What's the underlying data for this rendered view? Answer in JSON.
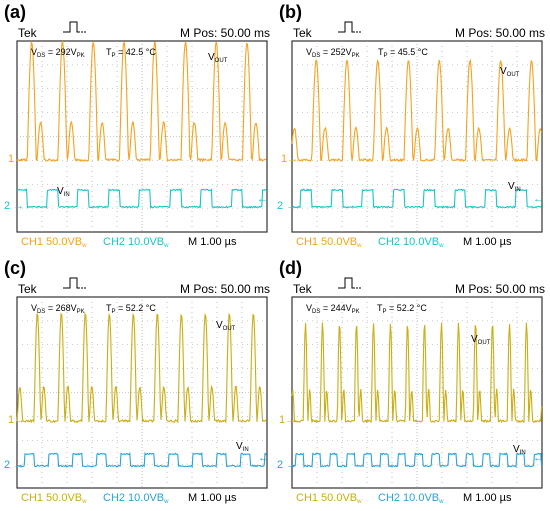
{
  "colors": {
    "ch1_ab": "#f5a21f",
    "ch1_cd": "#c9ae14",
    "ch2_ab": "#1cc4c8",
    "ch2_cd": "#2aa4d4",
    "grid": "#9a9a9a",
    "frame": "#333333"
  },
  "icons": {
    "trigger": "trigger-pulse-icon"
  },
  "panels": [
    {
      "label": "(a)",
      "tek": "Tek",
      "mpos": "M Pos: 50.00 ms",
      "vds_prefix": "V",
      "vds_sub": "DS",
      "vds_value": " = 292V",
      "vds_unit_sub": "PK",
      "tp_prefix": "T",
      "tp_sub": "P",
      "tp_value": " = 42.5 °C",
      "vout_prefix": "V",
      "vout_sub": "OUT",
      "vin_prefix": "V",
      "vin_sub": "IN",
      "ch1_marker": "1",
      "ch2_marker": "2",
      "ch1_text": "CH1 50.0VB",
      "ch1_sub": "w",
      "ch2_text": "CH2 10.0VB",
      "ch2_sub": "w",
      "timebase": "M 1.00 µs",
      "gate_period_div": 1.23,
      "gate_duty": 0.36,
      "gate_phase_div": 1.2
    },
    {
      "label": "(b)",
      "tek": "Tek",
      "mpos": "M Pos: 50.00 ms",
      "vds_prefix": "V",
      "vds_sub": "DS",
      "vds_value": " = 252V",
      "vds_unit_sub": "PK",
      "tp_prefix": "T",
      "tp_sub": "P",
      "tp_value": " = 45.5 °C",
      "vout_prefix": "V",
      "vout_sub": "OUT",
      "vin_prefix": "V",
      "vin_sub": "IN",
      "ch1_marker": "1",
      "ch2_marker": "2",
      "ch1_text": "CH1 50.0VB",
      "ch1_sub": "w",
      "ch2_text": "CH2 10.0VB",
      "ch2_sub": "w",
      "timebase": "M 1.00 µs",
      "gate_period_div": 1.23,
      "gate_duty": 0.36,
      "gate_phase_div": 0.35
    },
    {
      "label": "(c)",
      "tek": "Tek",
      "mpos": "M Pos: 50.00 ms",
      "vds_prefix": "V",
      "vds_sub": "DS",
      "vds_value": " = 268V",
      "vds_unit_sub": "PK",
      "tp_prefix": "T",
      "tp_sub": "P",
      "tp_value": " = 52.2 °C",
      "vout_prefix": "V",
      "vout_sub": "OUT",
      "vin_prefix": "V",
      "vin_sub": "IN",
      "ch1_marker": "1",
      "ch2_marker": "2",
      "ch1_text": "CH1 50.0VB",
      "ch1_sub": "w",
      "ch2_text": "CH2 10.0VB",
      "ch2_sub": "w",
      "timebase": "M 1.00 µs",
      "gate_period_div": 0.96,
      "gate_duty": 0.4,
      "gate_phase_div": 0.3
    },
    {
      "label": "(d)",
      "tek": "Tek",
      "mpos": "M Pos: 50.00 ms",
      "vds_prefix": "V",
      "vds_sub": "DS",
      "vds_value": " = 244V",
      "vds_unit_sub": "PK",
      "tp_prefix": "T",
      "tp_sub": "P",
      "tp_value": " = 52.2 °C",
      "vout_prefix": "V",
      "vout_sub": "OUT",
      "vin_prefix": "V",
      "vin_sub": "IN",
      "ch1_marker": "1",
      "ch2_marker": "2",
      "ch1_text": "CH1 50.0VB",
      "ch1_sub": "w",
      "ch2_text": "CH2 10.0VB",
      "ch2_sub": "w",
      "timebase": "M 1.00 µs",
      "gate_period_div": 0.68,
      "gate_duty": 0.45,
      "gate_phase_div": 0.15
    }
  ]
}
